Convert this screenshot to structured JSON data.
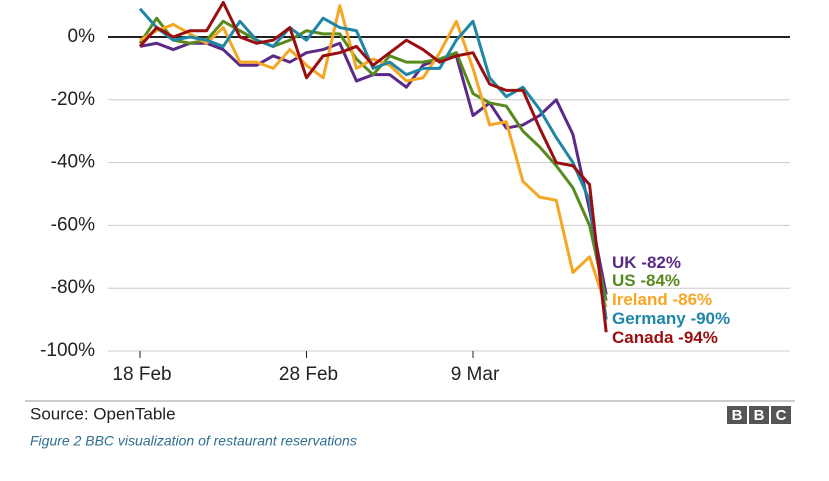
{
  "chart_data": {
    "type": "line",
    "source": "Source: OpenTable",
    "logo": [
      "B",
      "B",
      "C"
    ],
    "caption": "Figure 2 BBC visualization of restaurant reservations",
    "categories": [
      "18 Feb",
      null,
      null,
      null,
      null,
      null,
      null,
      null,
      null,
      null,
      "28 Feb",
      null,
      null,
      null,
      null,
      null,
      null,
      null,
      null,
      null,
      "9 Mar",
      null,
      null,
      null,
      null,
      null,
      null,
      null,
      null
    ],
    "ylim": [
      -100,
      10
    ],
    "yticks": [
      {
        "value": 0,
        "label": "0%"
      },
      {
        "value": -20,
        "label": "-20%"
      },
      {
        "value": -40,
        "label": "-40%"
      },
      {
        "value": -60,
        "label": "-60%"
      },
      {
        "value": -80,
        "label": "-80%"
      },
      {
        "value": -100,
        "label": "-100%"
      }
    ],
    "grid": true,
    "series": [
      {
        "name": "UK",
        "end_label": "-82%",
        "color": "#5b2a86",
        "values": [
          -3,
          -2,
          -4,
          -2,
          -2,
          -4,
          -9,
          -9,
          -6,
          -8,
          -5,
          -4,
          -2,
          -14,
          -12,
          -12,
          -16,
          -9,
          -7,
          -6,
          -25,
          -21,
          -29,
          -28,
          -25,
          -20,
          -31,
          -55,
          -82
        ]
      },
      {
        "name": "US",
        "end_label": "-84%",
        "color": "#588a1e",
        "values": [
          -2,
          6,
          -1,
          -2,
          -1,
          5,
          2,
          -1,
          -3,
          -1,
          2,
          1,
          1,
          -7,
          -12,
          -6,
          -8,
          -8,
          -7,
          -5,
          -18,
          -21,
          -22,
          -30,
          -35,
          -41,
          -48,
          -60,
          -84
        ]
      },
      {
        "name": "Ireland",
        "end_label": "-86%",
        "color": "#f5a623",
        "values": [
          -1,
          2,
          4,
          1,
          -2,
          3,
          -8,
          -8,
          -10,
          -4,
          -9,
          -13,
          10,
          -10,
          -7,
          -9,
          -14,
          -13,
          -5,
          5,
          -10,
          -28,
          -27,
          -46,
          -51,
          -52,
          -75,
          -70,
          -86
        ]
      },
      {
        "name": "Germany",
        "end_label": "-90%",
        "color": "#1f86a6",
        "values": [
          9,
          3,
          -1,
          0,
          -1,
          -3,
          5,
          -1,
          -3,
          3,
          -1,
          6,
          3,
          2,
          -10,
          -8,
          -12,
          -10,
          -10,
          -1,
          5,
          -13,
          -19,
          -16,
          -23,
          -32,
          -40,
          -52,
          -90
        ]
      },
      {
        "name": "Canada",
        "end_label": "-94%",
        "color": "#990f0f",
        "values": [
          -3,
          3,
          0,
          2,
          2,
          11,
          0,
          -2,
          -1,
          3,
          -13,
          -6,
          -5,
          -3,
          -9,
          -5,
          -1,
          -4,
          -8,
          -6,
          -5,
          -15,
          -17,
          -17,
          -29,
          -40,
          -41,
          -47,
          -94
        ]
      }
    ]
  }
}
